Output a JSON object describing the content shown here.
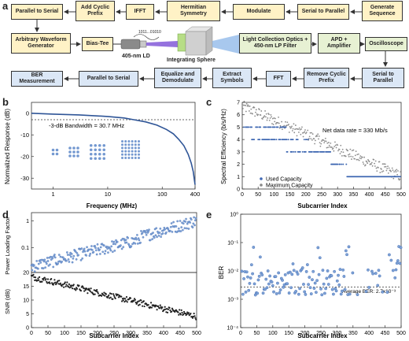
{
  "panels": {
    "a": "a",
    "b": "b",
    "c": "c",
    "d": "d",
    "e": "e"
  },
  "diagram": {
    "row1": [
      "Parallel to Serial",
      "Add Cyclic Prefix",
      "IFFT",
      "Hermitian Symmetry",
      "Modulate",
      "Serial to Parallel",
      "Generate Sequence"
    ],
    "row2": [
      "Arbitrary Waveform Generator",
      "Bias-Tee",
      "Light Collection Optics + 450-nm LP Filter",
      "APD + Amplifier",
      "Oscilloscope"
    ],
    "row3": [
      "BER Measurement",
      "Parallel to Serial",
      "Equalize and Demodulate",
      "Extract Symbols",
      "FFT",
      "Remove Cyclic Prefix",
      "Serial to Parallel"
    ],
    "laser_label": "405-nm LD",
    "bits_label": "1011...01010",
    "sphere_label": "Integrating Sphere"
  },
  "chart_data": [
    {
      "panel": "b",
      "type": "line",
      "xlabel": "Frequency (MHz)",
      "ylabel": "Normalized Response (dB)",
      "xscale": "log",
      "xlim": [
        0.4,
        400
      ],
      "ylim": [
        -35,
        5
      ],
      "xticks": [
        "1",
        "10",
        "100",
        "400"
      ],
      "yticks": [
        "0",
        "-10",
        "-20",
        "-30"
      ],
      "annotation": "-3-dB Bandwidth = 30.7 MHz",
      "threshold": -3,
      "x": [
        0.4,
        1,
        3,
        10,
        20,
        30,
        50,
        80,
        120,
        160,
        200,
        250,
        300,
        340,
        370,
        390,
        400
      ],
      "y": [
        0,
        -0.4,
        -0.8,
        -1.5,
        -2.2,
        -3,
        -4,
        -5.5,
        -7.5,
        -9.5,
        -12,
        -15,
        -19,
        -23,
        -27,
        -31,
        -33
      ]
    },
    {
      "panel": "c",
      "type": "scatter",
      "xlabel": "Subcarrier Index",
      "ylabel": "Spectral Efficiency (b/s/Hz)",
      "xlim": [
        0,
        500
      ],
      "ylim": [
        0,
        7
      ],
      "xticks": [
        "0",
        "50",
        "100",
        "150",
        "200",
        "250",
        "300",
        "350",
        "400",
        "450",
        "500"
      ],
      "yticks": [
        "0",
        "1",
        "2",
        "3",
        "4",
        "5",
        "6",
        "7"
      ],
      "annotation": "Net data rate = 330 Mb/s",
      "series": [
        {
          "name": "Used Capacity",
          "segments": [
            [
              5,
              140,
              5
            ],
            [
              30,
              210,
              4
            ],
            [
              140,
              280,
              3
            ],
            [
              280,
              330,
              2
            ],
            [
              330,
              500,
              1
            ]
          ]
        },
        {
          "name": "Maximum Capacity",
          "start": 6.7,
          "end": 1.0
        }
      ],
      "legend": "bottom-left"
    },
    {
      "panel": "d-top",
      "type": "scatter",
      "ylabel": "Power Loading Factor",
      "yscale": "log",
      "yticks": [
        "0.1",
        "1"
      ],
      "xlim": [
        0,
        500
      ],
      "segments": [
        [
          0,
          330,
          0.02,
          0.2
        ],
        [
          330,
          500,
          0.25,
          1.0
        ]
      ]
    },
    {
      "panel": "d-bottom",
      "type": "scatter",
      "xlabel": "Subcarrier Index",
      "ylabel": "SNR (dB)",
      "xlim": [
        0,
        500
      ],
      "ylim": [
        0,
        20
      ],
      "xticks": [
        "0",
        "50",
        "100",
        "150",
        "200",
        "250",
        "300",
        "350",
        "400",
        "450",
        "500"
      ],
      "yticks": [
        "0",
        "5",
        "10",
        "15",
        "20"
      ],
      "start": 18.5,
      "end": 4
    },
    {
      "panel": "e",
      "type": "scatter",
      "xlabel": "Subcarrier Index",
      "ylabel": "BER",
      "yscale": "log",
      "xlim": [
        0,
        500
      ],
      "ylim_exp": [
        -4,
        0
      ],
      "xticks": [
        "0",
        "50",
        "100",
        "150",
        "200",
        "250",
        "300",
        "350",
        "400",
        "450",
        "500"
      ],
      "yticks": [
        "10⁰",
        "10⁻¹",
        "10⁻²",
        "10⁻³",
        "10⁻⁴"
      ],
      "annotation": "Average BER: 2.7x10⁻³",
      "average": 0.0027
    }
  ]
}
